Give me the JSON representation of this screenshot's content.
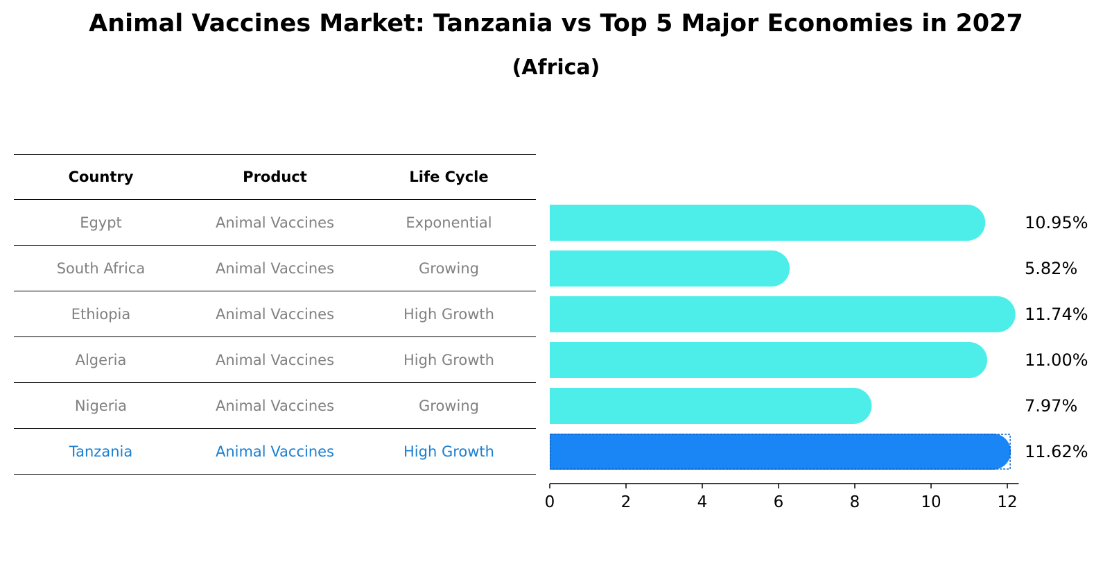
{
  "title": "Animal Vaccines Market: Tanzania vs Top 5 Major Economies in 2027",
  "subtitle": "(Africa)",
  "table": {
    "headers": [
      "Country",
      "Product",
      "Life Cycle"
    ],
    "rows": [
      {
        "country": "Egypt",
        "product": "Animal Vaccines",
        "life_cycle": "Exponential"
      },
      {
        "country": "South Africa",
        "product": "Animal Vaccines",
        "life_cycle": "Growing"
      },
      {
        "country": "Ethiopia",
        "product": "Animal Vaccines",
        "life_cycle": "High Growth"
      },
      {
        "country": "Algeria",
        "product": "Animal Vaccines",
        "life_cycle": "High Growth"
      },
      {
        "country": "Nigeria",
        "product": "Animal Vaccines",
        "life_cycle": "Growing"
      },
      {
        "country": "Tanzania",
        "product": "Animal Vaccines",
        "life_cycle": "High Growth"
      }
    ]
  },
  "colors": {
    "bar": "#4deeea",
    "highlight_bar": "#1a85f5",
    "highlight_text": "#1a7fd0",
    "table_text": "#808080"
  },
  "chart_data": {
    "type": "bar",
    "orientation": "horizontal",
    "categories": [
      "Egypt",
      "South Africa",
      "Ethiopia",
      "Algeria",
      "Nigeria",
      "Tanzania"
    ],
    "values": [
      10.95,
      5.82,
      11.74,
      11.0,
      7.97,
      11.62
    ],
    "value_labels": [
      "10.95%",
      "5.82%",
      "11.74%",
      "11.00%",
      "7.97%",
      "11.62%"
    ],
    "highlight": "Tanzania",
    "x_ticks": [
      0,
      2,
      4,
      6,
      8,
      10,
      12
    ],
    "xlim": [
      0,
      12.3
    ]
  }
}
